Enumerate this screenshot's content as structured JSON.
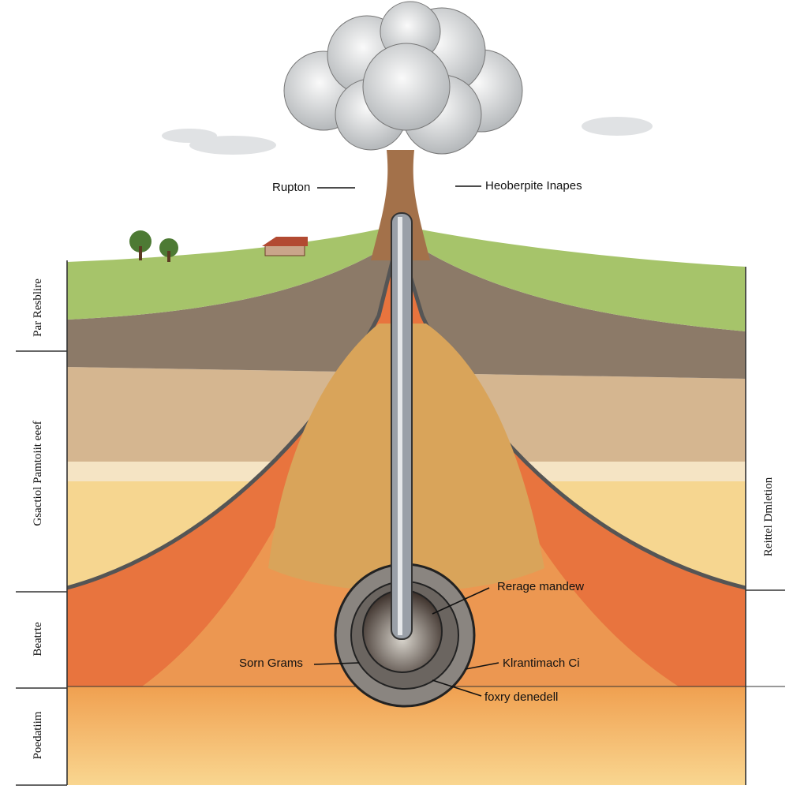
{
  "callouts": [
    {
      "text": "Rupton"
    },
    {
      "text": "Heoberpite Inapes"
    },
    {
      "text": "Rerage mandew"
    },
    {
      "text": "Sorn Grams"
    },
    {
      "text": "Klrantimach Ci"
    },
    {
      "text": "foxry denedell"
    }
  ],
  "side_labels": [
    "Par Resblire",
    "Gsactiol Pamtoiit eeef",
    "Beatrte",
    "Poedatiim",
    "Reittel Dmletion"
  ]
}
